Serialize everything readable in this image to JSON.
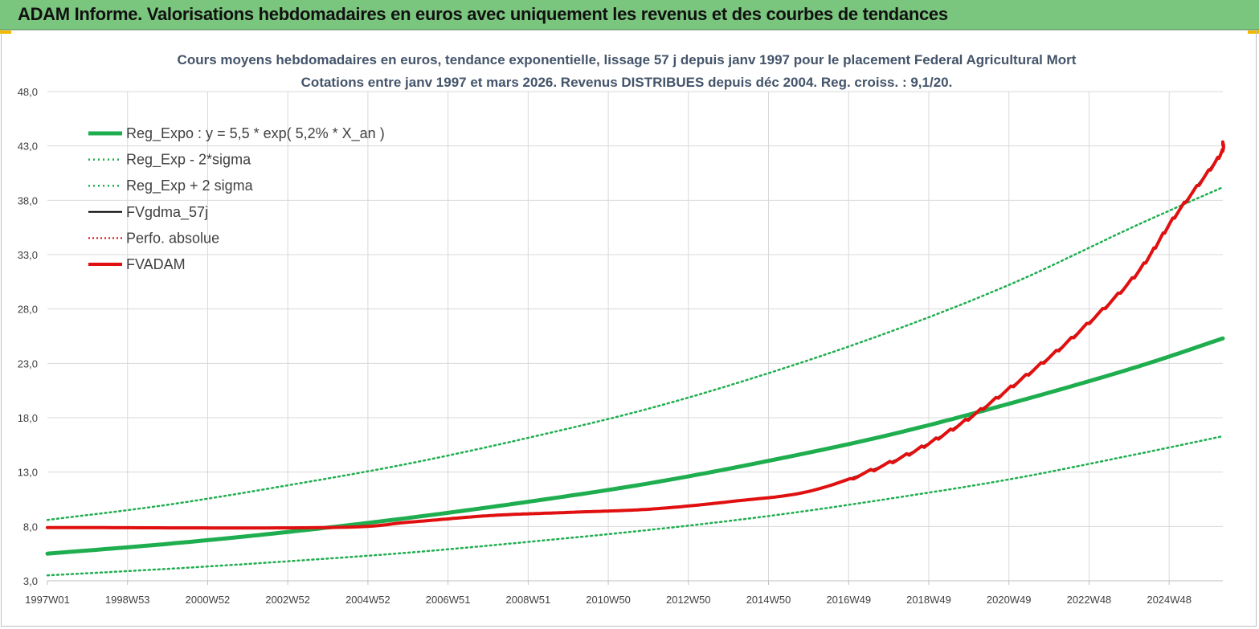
{
  "header": {
    "title": "ADAM Informe. Valorisations hebdomadaires en euros avec uniquement les revenus et des courbes de tendances"
  },
  "chart_data": {
    "type": "line",
    "title": "Cours moyens hebdomadaires en euros, tendance exponentielle, lissage 57 j depuis janv 1997 pour le placement Federal Agricultural Mort",
    "subtitle": "Cotations entre janv 1997 et mars 2026. Revenus DISTRIBUES depuis déc 2004. Reg. croiss. : 9,1/20.",
    "xlabel": "",
    "ylabel": "",
    "ylim": [
      3.0,
      48.0
    ],
    "xlim": [
      1997.0,
      2026.2
    ],
    "y_ticks": [
      "3,0",
      "8,0",
      "13,0",
      "18,0",
      "23,0",
      "28,0",
      "33,0",
      "38,0",
      "43,0",
      "48,0"
    ],
    "x_ticks": [
      "1997W01",
      "1998W53",
      "2000W52",
      "2002W52",
      "2004W52",
      "2006W51",
      "2008W51",
      "2010W50",
      "2012W50",
      "2014W50",
      "2016W49",
      "2018W49",
      "2020W49",
      "2022W48",
      "2024W48"
    ],
    "grid": true,
    "legend_position": "top-left",
    "series": [
      {
        "name": "Reg_Expo : y = 5,5 * exp( 5,2% *  X_an )",
        "color": "#1fae4f",
        "style": "solid",
        "x": [
          1997,
          2000,
          2003,
          2006,
          2009,
          2012,
          2015,
          2018,
          2021,
          2024,
          2026.2
        ],
        "y": [
          5.5,
          6.4,
          7.5,
          8.8,
          10.3,
          12.0,
          14.1,
          16.5,
          19.4,
          22.6,
          25.3
        ]
      },
      {
        "name": "Reg_Exp - 2*sigma",
        "color": "#1fae4f",
        "style": "dotted",
        "x": [
          1997,
          2000,
          2003,
          2006,
          2009,
          2012,
          2015,
          2018,
          2021,
          2024,
          2026.2
        ],
        "y": [
          3.5,
          4.1,
          4.8,
          5.6,
          6.6,
          7.7,
          9.0,
          10.6,
          12.4,
          14.6,
          16.3
        ]
      },
      {
        "name": "Reg_Exp + 2 sigma",
        "color": "#1fae4f",
        "style": "dotted",
        "x": [
          1997,
          2000,
          2003,
          2006,
          2009,
          2012,
          2015,
          2018,
          2021,
          2024,
          2026.2
        ],
        "y": [
          8.6,
          10.0,
          11.8,
          13.8,
          16.2,
          18.9,
          22.2,
          26.0,
          30.4,
          35.6,
          39.2
        ]
      },
      {
        "name": "FVgdma_57j",
        "color": "#000000",
        "style": "solid",
        "x": [
          1997,
          2004,
          2006,
          2008,
          2010,
          2012,
          2014,
          2016,
          2018,
          2019.5,
          2021,
          2022.5,
          2024,
          2025,
          2026.1
        ],
        "y": [
          7.9,
          7.9,
          8.4,
          9.0,
          9.3,
          9.6,
          10.3,
          11.3,
          14.0,
          17.0,
          21.0,
          25.5,
          31.0,
          36.5,
          42.0
        ]
      },
      {
        "name": "Perfo. absolue",
        "color": "#e00000",
        "style": "dotted",
        "x": [],
        "y": []
      },
      {
        "name": "FVADAM",
        "color": "#e01010",
        "style": "solid",
        "x": [
          1997,
          2004,
          2006,
          2008,
          2010,
          2012,
          2014,
          2016,
          2018,
          2019.5,
          2021,
          2022.5,
          2024,
          2025,
          2026.1,
          2026.2
        ],
        "y": [
          7.9,
          7.9,
          8.4,
          9.0,
          9.3,
          9.6,
          10.3,
          11.3,
          14.0,
          17.0,
          21.0,
          25.5,
          31.0,
          36.5,
          42.0,
          43.3
        ]
      }
    ]
  }
}
